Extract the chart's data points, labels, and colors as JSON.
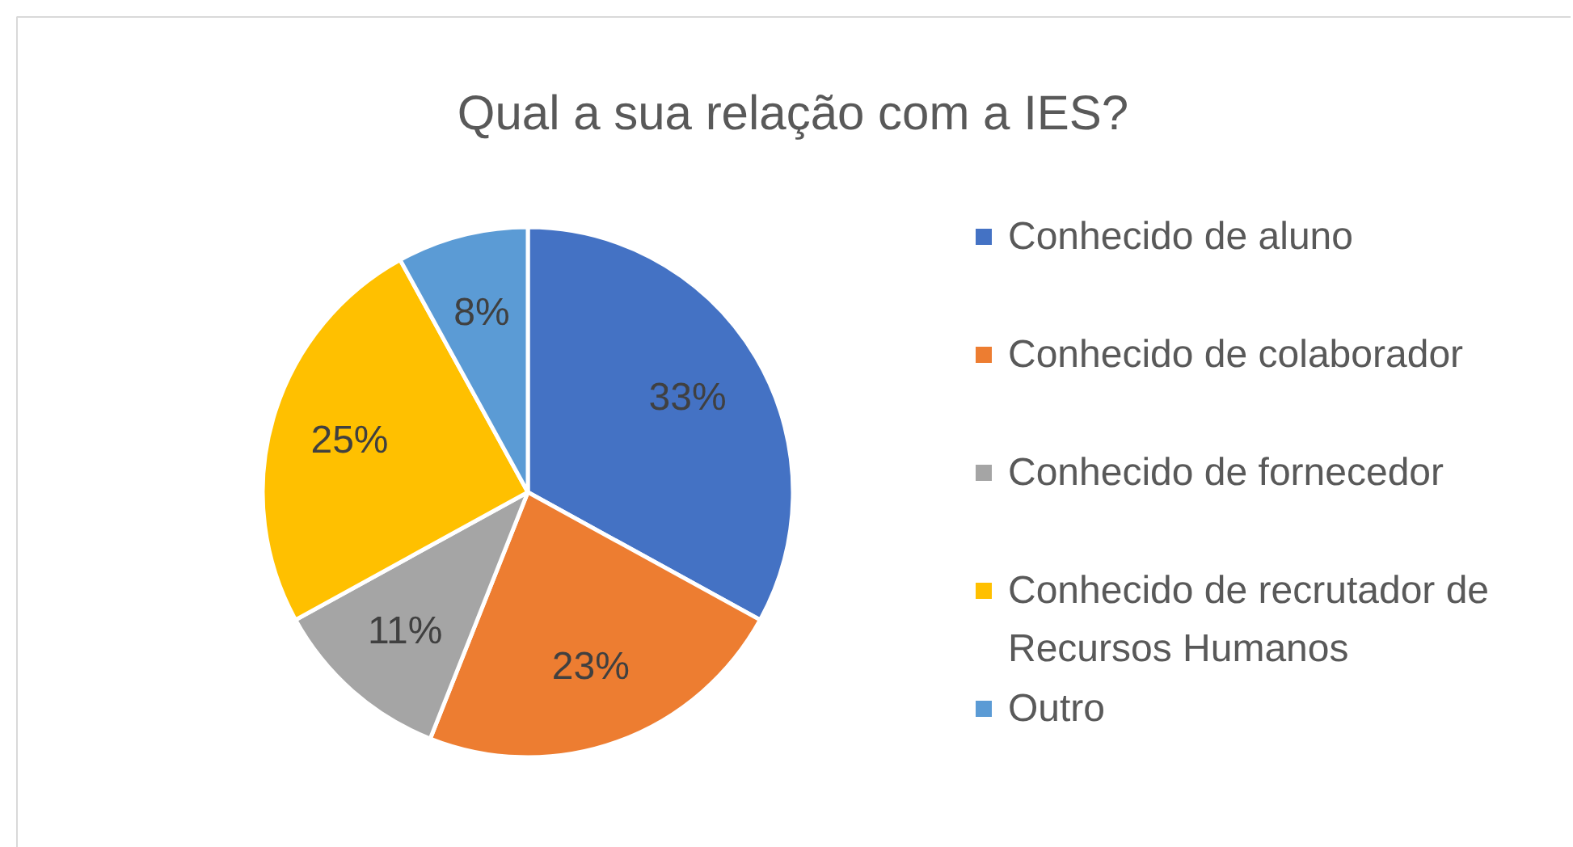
{
  "chart_data": {
    "type": "pie",
    "title": "Qual a sua relação com a IES?",
    "categories": [
      "Conhecido de aluno",
      "Conhecido de colaborador",
      "Conhecido de fornecedor",
      "Conhecido de recrutador de Recursos Humanos",
      "Outro"
    ],
    "values": [
      33,
      23,
      11,
      25,
      8
    ],
    "colors": [
      "#4472c4",
      "#ed7d31",
      "#a5a5a5",
      "#ffc000",
      "#5b9bd5"
    ],
    "value_labels": [
      "33%",
      "23%",
      "11%",
      "25%",
      "8%"
    ],
    "legend": "right"
  }
}
